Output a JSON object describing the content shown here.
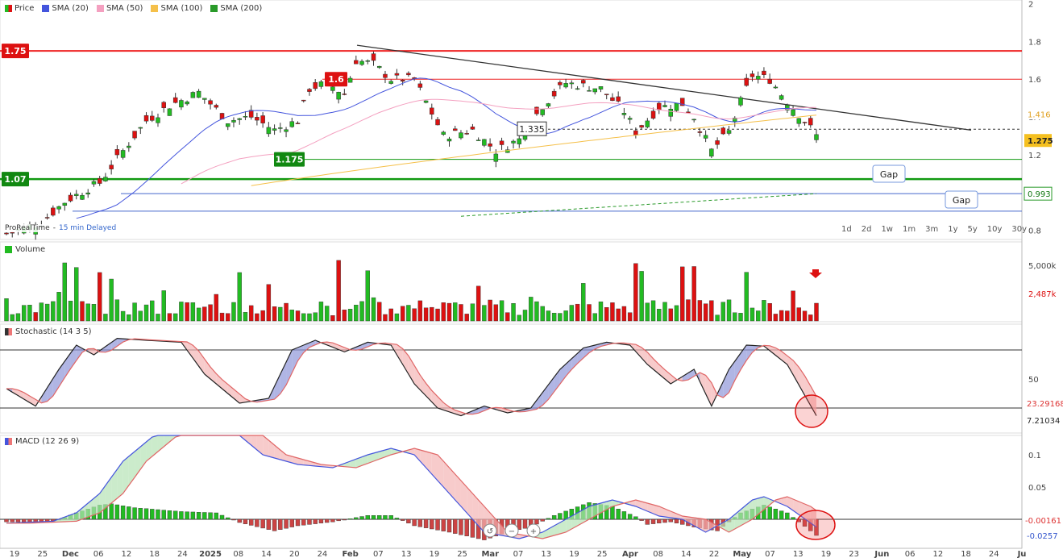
{
  "legend": {
    "price": "Price",
    "sma20": "SMA (20)",
    "sma50": "SMA (50)",
    "sma100": "SMA (100)",
    "sma200": "SMA (200)"
  },
  "colors": {
    "up": "#22bb22",
    "down": "#dd1111",
    "sma20": "#4455dd",
    "sma50": "#f4a0c0",
    "sma100": "#f5c04a",
    "sma200": "#2a9a2a",
    "resistance": "#ee2222",
    "support": "#119911",
    "gap_line": "#4466cc",
    "trend": "#333333"
  },
  "provider": {
    "brand": "ProRealTime",
    "delay": "15 min Delayed"
  },
  "ranges": [
    "1d",
    "2d",
    "1w",
    "1m",
    "3m",
    "1y",
    "5y",
    "10y",
    "30y"
  ],
  "labels": {
    "l175": "1.75",
    "l16": "1.6",
    "l1175": "1.175",
    "l107": "1.07",
    "l1335": "1.335",
    "gap": "Gap"
  },
  "price_axis": {
    "ticks": [
      "2",
      "1.8",
      "1.6",
      "1.4",
      "1.2",
      "0.8"
    ],
    "last_price": "1.275",
    "sma100_label": "1.416",
    "sma200_label": "0.993"
  },
  "volume_panel": {
    "title": "Volume",
    "ticks": [
      "5,000k"
    ],
    "last": "2,487k"
  },
  "stoch_panel": {
    "title": "Stochastic (14 3 5)",
    "ticks": [
      "50"
    ],
    "k_val": "23.29168",
    "d_val": "7.21034"
  },
  "macd_panel": {
    "title": "MACD (12 26 9)",
    "ticks": [
      "0.1",
      "0.05"
    ],
    "val1": "-0.00161",
    "val2": "-0.0257"
  },
  "x_axis": [
    "19",
    "25",
    "Dec",
    "06",
    "12",
    "18",
    "24",
    "2025",
    "08",
    "14",
    "20",
    "24",
    "Feb",
    "07",
    "13",
    "19",
    "25",
    "Mar",
    "07",
    "13",
    "19",
    "25",
    "Apr",
    "08",
    "14",
    "22",
    "May",
    "07",
    "13",
    "19",
    "23",
    "Jun",
    "06",
    "12",
    "18",
    "24",
    "Ju"
  ],
  "chart_data": {
    "type": "candlestick",
    "price_ylim": [
      0.75,
      2.02
    ],
    "hlines": {
      "resistance_1": 1.75,
      "resistance_2": 1.6,
      "support_1": 1.175,
      "support_2": 1.07,
      "gap_1": 0.993,
      "gap_2": 0.9,
      "last": 1.335
    },
    "volume_ylim": [
      0,
      6000
    ],
    "stoch_levels": [
      20,
      80
    ],
    "macd_ylim": [
      -0.045,
      0.13
    ]
  }
}
